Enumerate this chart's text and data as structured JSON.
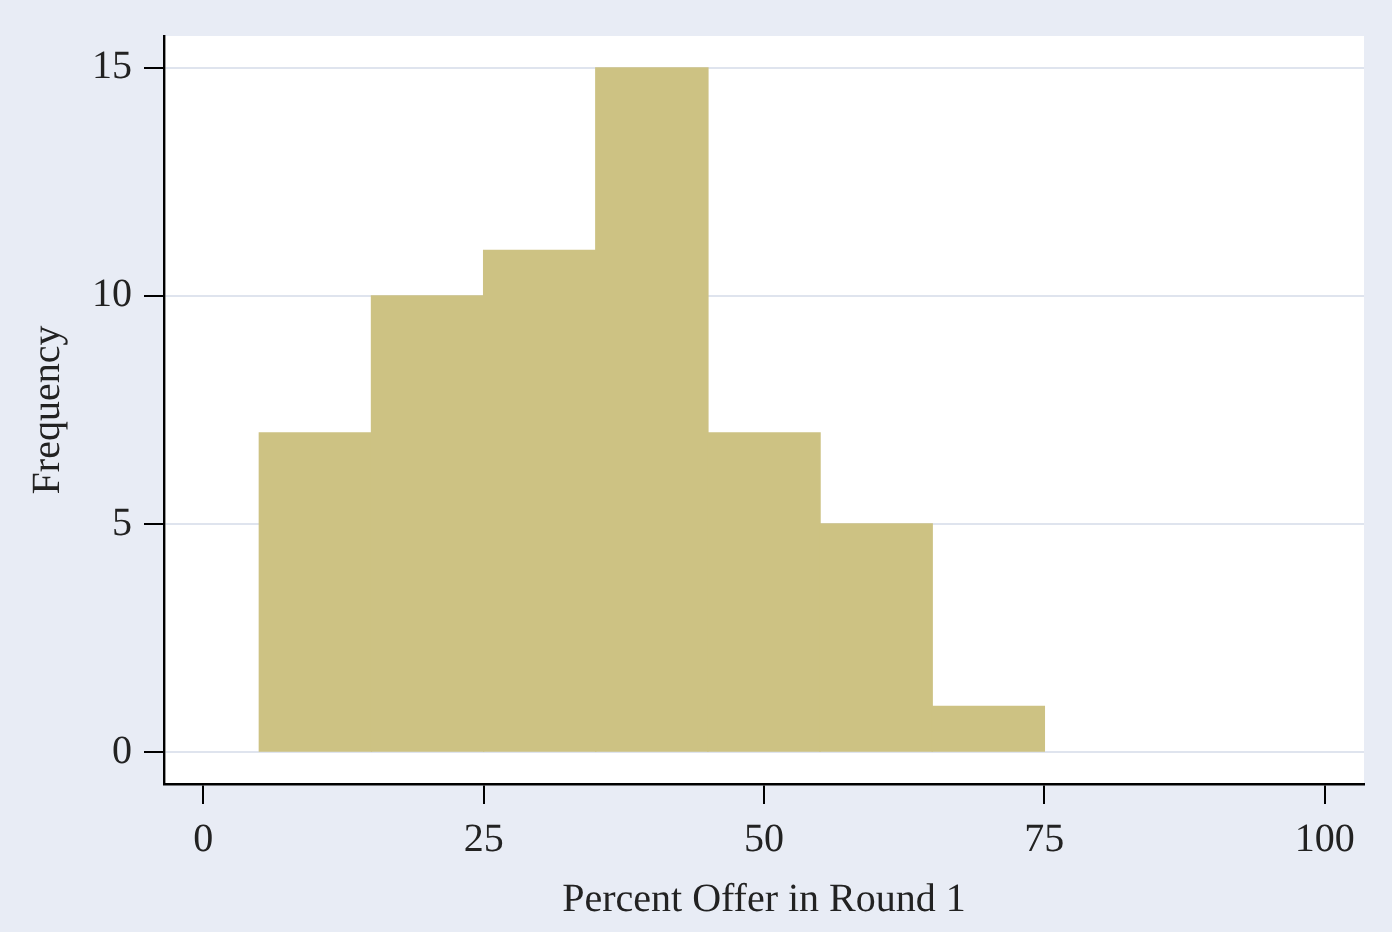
{
  "chart_data": {
    "type": "histogram",
    "xlabel": "Percent Offer in Round 1",
    "ylabel": "Frequency",
    "bins": [
      5,
      15,
      25,
      35,
      45,
      55,
      65,
      75
    ],
    "values": [
      7,
      10,
      11,
      15,
      7,
      5,
      1
    ],
    "color": "#cdc283",
    "xlim": [
      -3.5,
      103.5
    ],
    "xticks": [
      0,
      25,
      50,
      75,
      100
    ],
    "ylim": [
      -0.7,
      15.7
    ],
    "yticks": [
      0,
      5,
      10,
      15
    ],
    "grid": "y",
    "legend": false
  }
}
